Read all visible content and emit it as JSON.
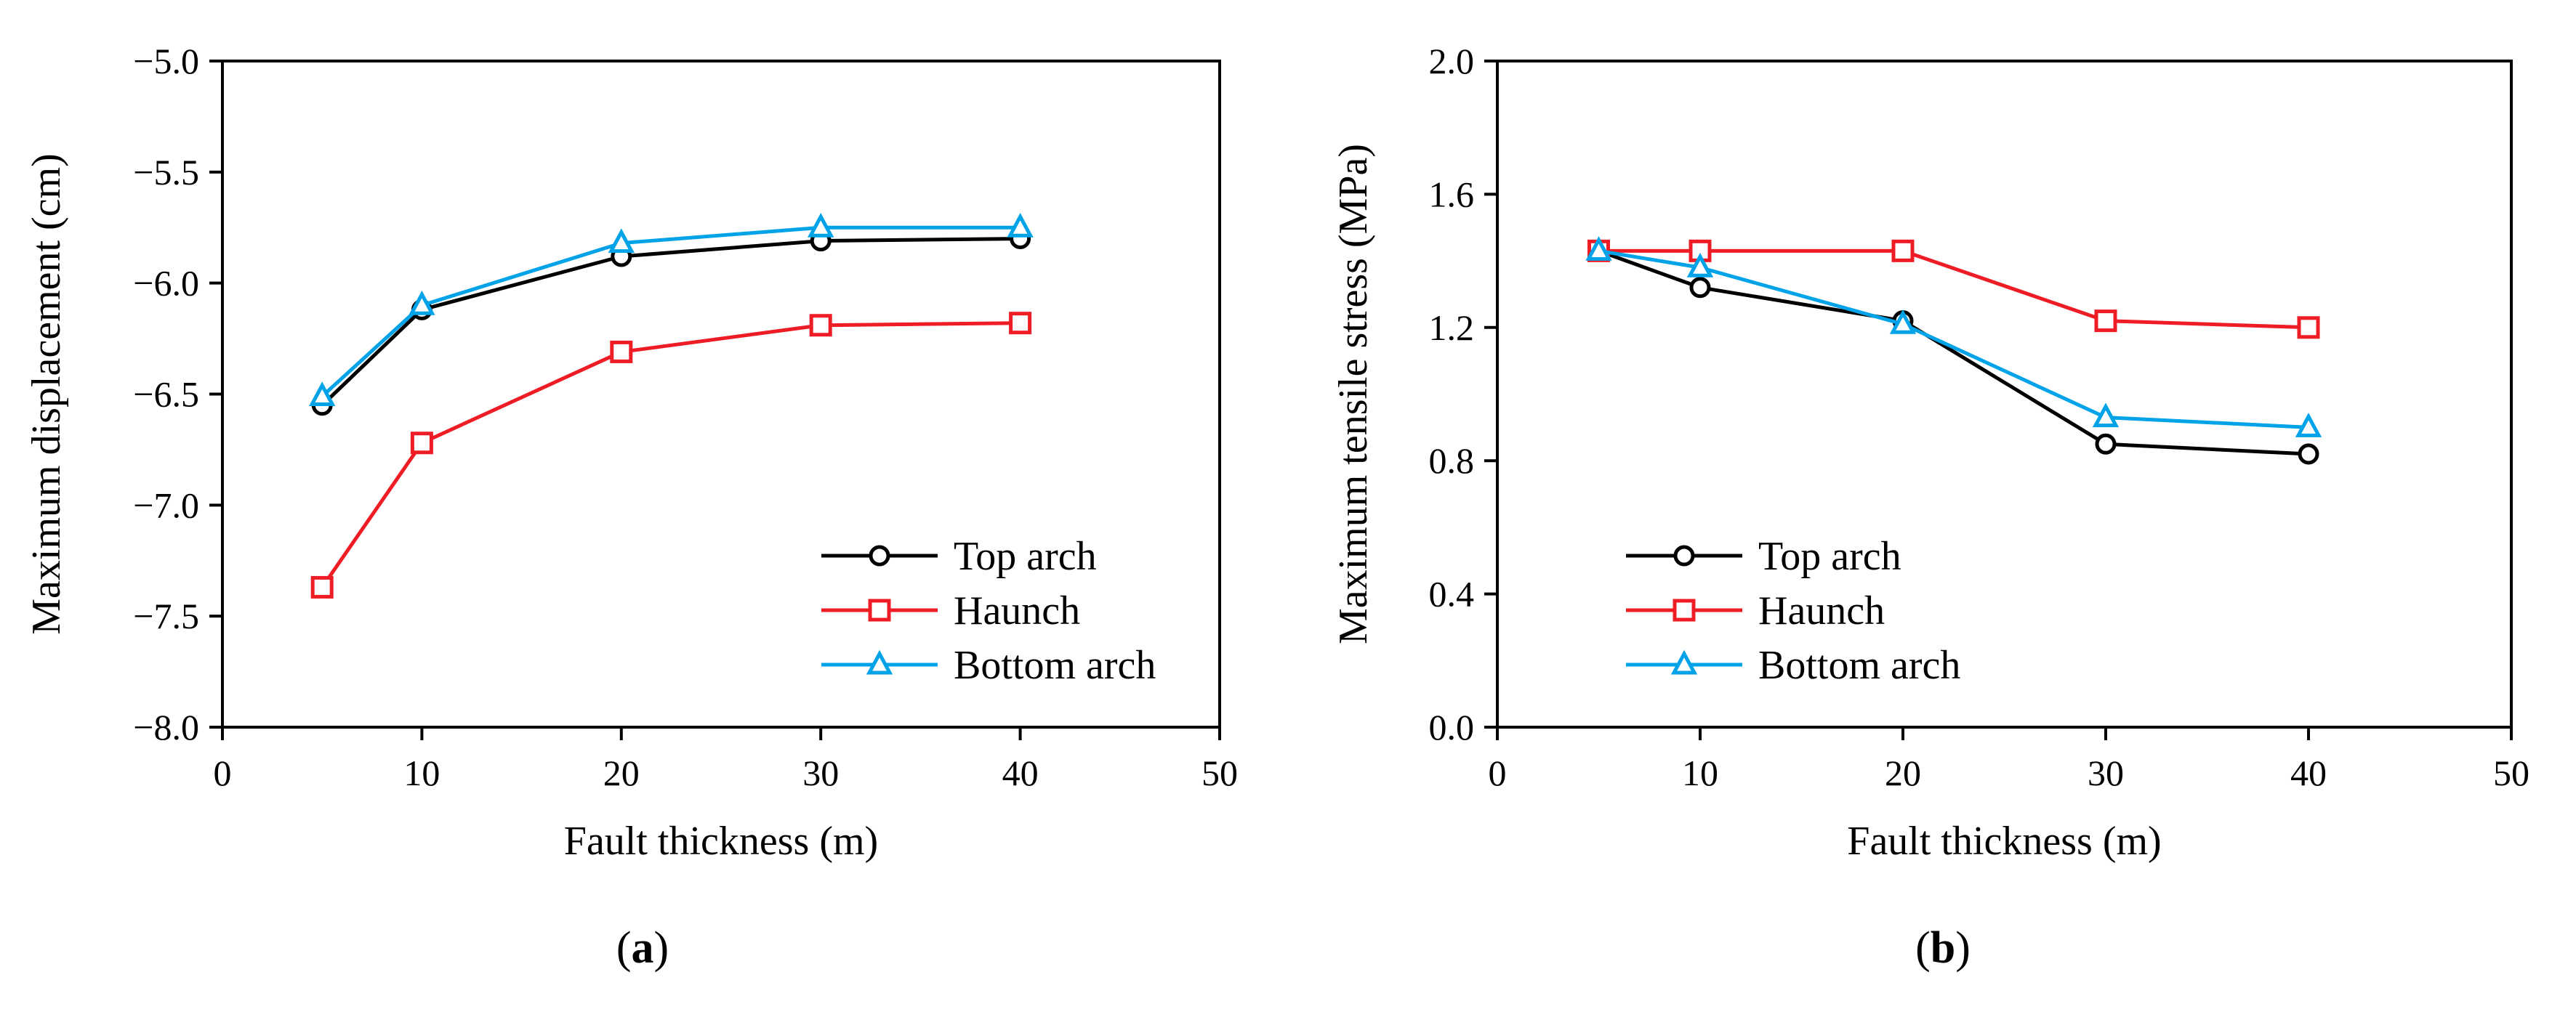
{
  "chart_data": [
    {
      "type": "line",
      "xlabel": "Fault thickness  (m)",
      "ylabel": "Maximum displacement (cm)",
      "xlim": [
        0,
        50
      ],
      "ylim": [
        -8.0,
        -5.0
      ],
      "xticks": [
        0,
        10,
        20,
        30,
        40,
        50
      ],
      "yticks": [
        -8.0,
        -7.5,
        -7.0,
        -6.5,
        -6.0,
        -5.5,
        -5.0
      ],
      "ytick_labels": [
        "−8.0",
        "−7.5",
        "−7.0",
        "−6.5",
        "−6.0",
        "−5.5",
        "−5.0"
      ],
      "x": [
        5,
        10,
        20,
        30,
        40
      ],
      "series": [
        {
          "name": "Top arch",
          "marker": "circle",
          "color": "#000000",
          "values": [
            -6.55,
            -6.12,
            -5.88,
            -5.81,
            -5.8
          ]
        },
        {
          "name": "Haunch",
          "marker": "square",
          "color": "#ee1c25",
          "values": [
            -7.37,
            -6.72,
            -6.31,
            -6.19,
            -6.18
          ]
        },
        {
          "name": "Bottom arch",
          "marker": "triangle",
          "color": "#00a2e8",
          "values": [
            -6.51,
            -6.1,
            -5.82,
            -5.75,
            -5.75
          ]
        }
      ],
      "legend_position": "bottom-right",
      "caption_letter": "a"
    },
    {
      "type": "line",
      "xlabel": "Fault thickness  (m)",
      "ylabel": "Maximum tensile stress (MPa)",
      "xlim": [
        0,
        50
      ],
      "ylim": [
        0.0,
        2.0
      ],
      "xticks": [
        0,
        10,
        20,
        30,
        40,
        50
      ],
      "yticks": [
        0.0,
        0.4,
        0.8,
        1.2,
        1.6,
        2.0
      ],
      "ytick_labels": [
        "0.0",
        "0.4",
        "0.8",
        "1.2",
        "1.6",
        "2.0"
      ],
      "x": [
        5,
        10,
        20,
        30,
        40
      ],
      "series": [
        {
          "name": "Top arch",
          "marker": "circle",
          "color": "#000000",
          "values": [
            1.43,
            1.32,
            1.22,
            0.85,
            0.82
          ]
        },
        {
          "name": "Haunch",
          "marker": "square",
          "color": "#ee1c25",
          "values": [
            1.43,
            1.43,
            1.43,
            1.22,
            1.2
          ]
        },
        {
          "name": "Bottom arch",
          "marker": "triangle",
          "color": "#00a2e8",
          "values": [
            1.43,
            1.38,
            1.21,
            0.93,
            0.9
          ]
        }
      ],
      "legend_position": "bottom-left",
      "caption_letter": "b"
    }
  ]
}
